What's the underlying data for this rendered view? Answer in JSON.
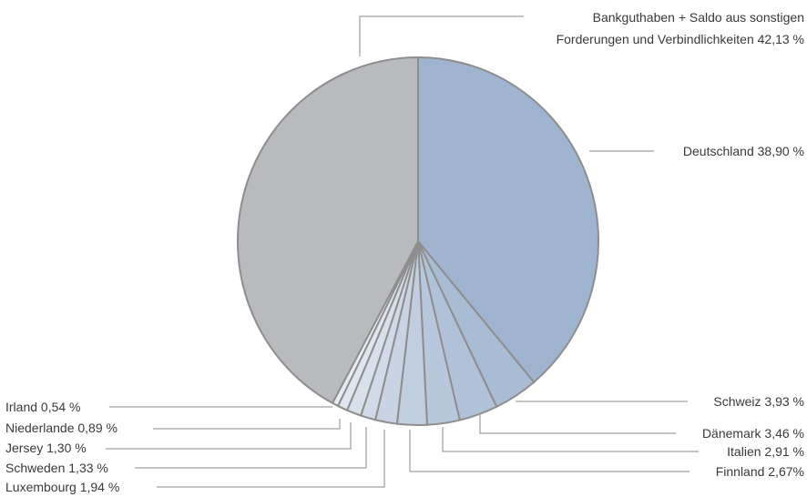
{
  "chart_data": {
    "type": "pie",
    "title": "",
    "slices": [
      {
        "label": "Deutschland 38,90 %",
        "value": 38.9,
        "color": "#9fb4cf"
      },
      {
        "label": "Schweiz 3,93 %",
        "value": 3.93,
        "color": "#a8bcd4"
      },
      {
        "label": "Dänemark 3,46 %",
        "value": 3.46,
        "color": "#b0c2d8"
      },
      {
        "label": "Italien 2,91 %",
        "value": 2.91,
        "color": "#b8c8dc"
      },
      {
        "label": "Finnland 2,67%",
        "value": 2.67,
        "color": "#c0cee0"
      },
      {
        "label": "Luxembourg 1,94 %",
        "value": 1.94,
        "color": "#c8d4e4"
      },
      {
        "label": "Schweden 1,33 %",
        "value": 1.33,
        "color": "#d0dae8"
      },
      {
        "label": "Jersey 1,30 %",
        "value": 1.3,
        "color": "#d8e0ec"
      },
      {
        "label": "Niederlande 0,89 %",
        "value": 0.89,
        "color": "#e0e6f0"
      },
      {
        "label": "Irland 0,54 %",
        "value": 0.54,
        "color": "#e8ecf4"
      },
      {
        "label": "Bankguthaben + Saldo aus sonstigen Forderungen und Verbindlichkeiten 42,13 %",
        "value": 42.13,
        "color": "#b9babe"
      }
    ],
    "label_lines": {
      "bank": [
        "Bankguthaben + Saldo aus sonstigen",
        "Forderungen und Verbindlichkeiten 42,13 %"
      ]
    }
  }
}
